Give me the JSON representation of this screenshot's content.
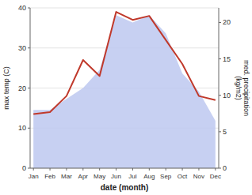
{
  "chart_data": {
    "type": "line",
    "xlabel": "date (month)",
    "ylabel": "max temp (C)",
    "y2label": "med. precipitation\n(kg/m2)",
    "categories": [
      "Jan",
      "Feb",
      "Mar",
      "Apr",
      "May",
      "Jun",
      "Jul",
      "Aug",
      "Sep",
      "Oct",
      "Nov",
      "Dec"
    ],
    "series": [
      {
        "type": "area",
        "axis": "y2",
        "color": "#bdc8f0",
        "values": [
          8.0,
          8.0,
          9.5,
          11.0,
          13.5,
          21.0,
          20.0,
          21.0,
          18.5,
          13.0,
          10.5,
          6.5
        ]
      },
      {
        "type": "line",
        "color": "#c0392b",
        "values": [
          13.5,
          14.0,
          18.0,
          27.0,
          23.0,
          39.0,
          37.0,
          38.0,
          32.0,
          26.0,
          18.0,
          17.0
        ]
      }
    ],
    "ylim": [
      0,
      40
    ],
    "yticks": [
      0,
      10,
      20,
      30,
      40
    ],
    "y2lim": [
      0,
      22
    ],
    "y2ticks": [
      0,
      5,
      10,
      15,
      20
    ],
    "grid": true
  }
}
